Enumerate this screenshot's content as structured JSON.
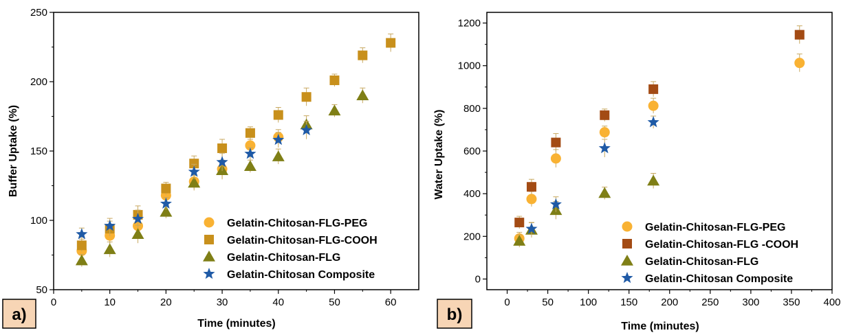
{
  "colors": {
    "peg": "#F9B233",
    "cooh_a": "#C8901C",
    "cooh_b": "#A34B14",
    "flg": "#7F7F16",
    "composite": "#1F5AA6",
    "error_bar": "#C8A860",
    "panel_tag_bg": "#F7D5B5"
  },
  "chart_data": [
    {
      "type": "scatter",
      "panel": "a)",
      "xlabel": "Time (minutes)",
      "ylabel": "Buffer Uptake (%)",
      "xlim": [
        0,
        65
      ],
      "ylim": [
        50,
        250
      ],
      "xticks": [
        0,
        10,
        20,
        30,
        40,
        50,
        60
      ],
      "yticks": [
        50,
        100,
        150,
        200,
        250
      ],
      "grid": false,
      "legend_position": "bottom-right",
      "series": [
        {
          "name": "Gelatin-Chitosan-FLG-PEG",
          "marker": "circle",
          "color": "#F9B233",
          "x": [
            5,
            10,
            15,
            20,
            25,
            30,
            35,
            40
          ],
          "y": [
            78,
            89,
            96,
            118,
            128,
            137,
            154,
            160
          ]
        },
        {
          "name": "Gelatin-Chitosan-FLG-COOH",
          "marker": "square",
          "color": "#C8901C",
          "x": [
            5,
            10,
            15,
            20,
            25,
            30,
            35,
            40,
            45,
            50,
            55,
            60
          ],
          "y": [
            82,
            94,
            104,
            123,
            141,
            152,
            163,
            176,
            189,
            201,
            219,
            228
          ]
        },
        {
          "name": "Gelatin-Chitosan-FLG",
          "marker": "triangle",
          "color": "#7F7F16",
          "x": [
            5,
            10,
            15,
            20,
            25,
            30,
            35,
            40,
            45,
            50,
            55
          ],
          "y": [
            71,
            79,
            90,
            106,
            127,
            136,
            139,
            146,
            169,
            179,
            190
          ]
        },
        {
          "name": "Gelatin-Chitosan Composite",
          "marker": "star",
          "color": "#1F5AA6",
          "x": [
            5,
            10,
            15,
            20,
            25,
            30,
            35,
            40,
            45
          ],
          "y": [
            90,
            96,
            101,
            112,
            135,
            142,
            148,
            158,
            165
          ]
        }
      ]
    },
    {
      "type": "scatter",
      "panel": "b)",
      "xlabel": "Time (minutes)",
      "ylabel": "Water Uptake (%)",
      "xlim": [
        -25,
        400
      ],
      "ylim": [
        -50,
        1250
      ],
      "xticks": [
        0,
        50,
        100,
        150,
        200,
        250,
        300,
        350,
        400
      ],
      "yticks": [
        0,
        200,
        400,
        600,
        800,
        1000,
        1200
      ],
      "grid": false,
      "legend_position": "bottom-right",
      "series": [
        {
          "name": "Gelatin-Chitosan-FLG-PEG",
          "marker": "circle",
          "color": "#F9B233",
          "x": [
            15,
            30,
            60,
            120,
            180,
            360
          ],
          "y": [
            190,
            375,
            565,
            688,
            812,
            1013
          ]
        },
        {
          "name": "Gelatin-Chitosan-FLG -COOH",
          "marker": "square",
          "color": "#A34B14",
          "x": [
            15,
            30,
            60,
            120,
            180,
            360
          ],
          "y": [
            265,
            432,
            640,
            768,
            890,
            1145
          ]
        },
        {
          "name": "Gelatin-Chitosan-FLG",
          "marker": "triangle",
          "color": "#7F7F16",
          "x": [
            15,
            30,
            60,
            120,
            180
          ],
          "y": [
            178,
            230,
            322,
            402,
            460
          ]
        },
        {
          "name": "Gelatin-Chitosan Composite",
          "marker": "star",
          "color": "#1F5AA6",
          "x": [
            30,
            60,
            120,
            180
          ],
          "y": [
            235,
            350,
            613,
            735
          ]
        }
      ]
    }
  ]
}
